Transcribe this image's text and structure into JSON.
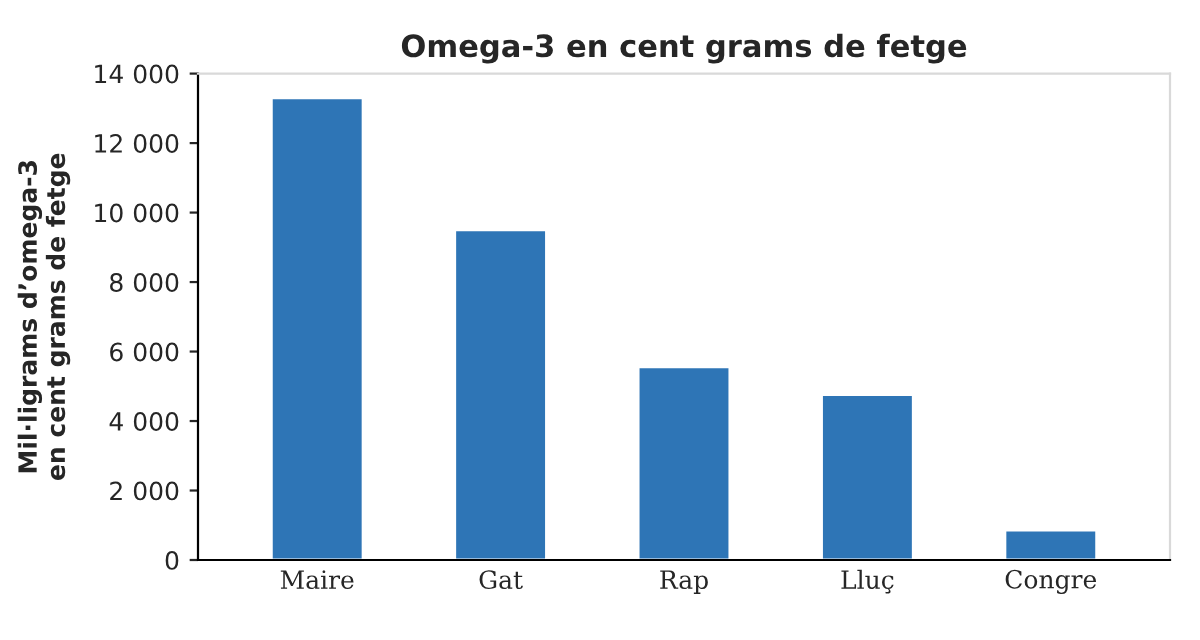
{
  "chart_data": {
    "type": "bar",
    "title": "Omega-3 en cent grams de fetge",
    "ylabel": "Mil·ligrams d’omega-3\nen cent grams de fetge",
    "categories": [
      "Maire",
      "Gat",
      "Rap",
      "Lluç",
      "Congre"
    ],
    "values": [
      13300,
      9500,
      5560,
      4760,
      860
    ],
    "color": "#2e75b6",
    "ylim": [
      0,
      14000
    ],
    "yticks": [
      0,
      {
        "value": 2000,
        "label": "2 000"
      },
      {
        "value": 4000,
        "label": "4 000"
      },
      {
        "value": 6000,
        "label": "6 000"
      },
      {
        "value": 8000,
        "label": "8 000"
      },
      {
        "value": 10000,
        "label": "10 000"
      },
      {
        "value": 12000,
        "label": "12 000"
      },
      {
        "value": 14000,
        "label": "14 000"
      }
    ],
    "grid": false
  }
}
